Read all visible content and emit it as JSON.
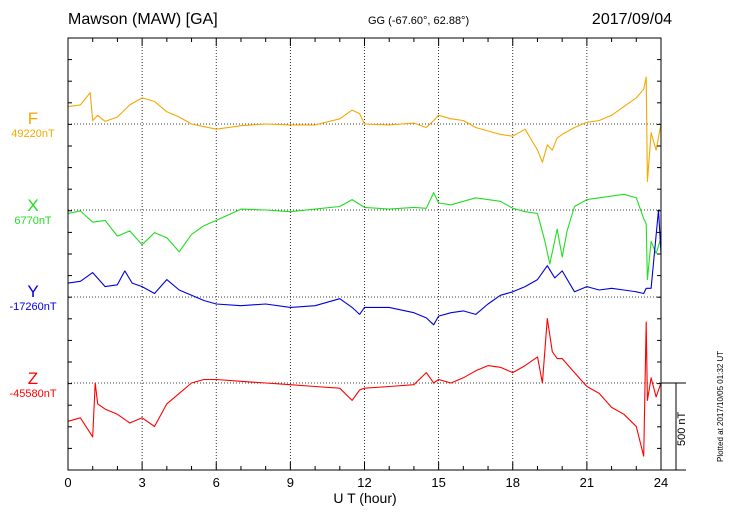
{
  "header": {
    "station": "Mawson (MAW)  [GA]",
    "coords": "GG (-67.60°,  62.88°)",
    "date": "2017/09/04"
  },
  "footnote": "Plotted at 2017/10/05 01:32 UT",
  "scale_label": "500 nT",
  "chart_data": {
    "type": "line",
    "xlabel": "U T (hour)",
    "ylabel": "",
    "xlim": [
      0,
      24
    ],
    "xticks": [
      0,
      3,
      6,
      9,
      12,
      15,
      18,
      21,
      24
    ],
    "scale_bar_nT": 500,
    "grid": true,
    "series": [
      {
        "name": "F",
        "baseline_label": "49220nT",
        "color": "#f5a800",
        "baseline_nT": 49220,
        "x": [
          0,
          0.5,
          0.9,
          1.0,
          1.2,
          1.5,
          2.0,
          2.5,
          3.0,
          3.5,
          4.0,
          4.5,
          5.0,
          5.5,
          6.0,
          7.0,
          8.0,
          9.0,
          10.0,
          11.0,
          11.5,
          11.8,
          12.0,
          13.0,
          14.0,
          14.5,
          14.8,
          15.0,
          15.5,
          16.0,
          16.5,
          17.0,
          17.5,
          18.0,
          18.5,
          19.0,
          19.2,
          19.4,
          19.6,
          19.8,
          20.0,
          20.5,
          21.0,
          21.5,
          22.0,
          22.5,
          23.0,
          23.3,
          23.4,
          23.45,
          23.6,
          23.8,
          24.0
        ],
        "values": [
          100,
          110,
          180,
          20,
          50,
          15,
          40,
          110,
          150,
          130,
          70,
          40,
          0,
          -15,
          -30,
          -10,
          0,
          -5,
          -5,
          30,
          80,
          60,
          0,
          -5,
          5,
          -20,
          20,
          50,
          30,
          20,
          -20,
          -40,
          -60,
          -70,
          -30,
          -150,
          -220,
          -120,
          -150,
          -80,
          -60,
          -20,
          10,
          20,
          50,
          100,
          150,
          200,
          270,
          -330,
          -50,
          -150,
          0
        ]
      },
      {
        "name": "X",
        "baseline_label": "6770nT",
        "color": "#22dd22",
        "baseline_nT": 6770,
        "x": [
          0,
          0.5,
          1.0,
          1.5,
          2.0,
          2.5,
          3.0,
          3.5,
          4.0,
          4.5,
          5.0,
          5.5,
          6.0,
          7.0,
          8.0,
          9.0,
          10.0,
          11.0,
          11.5,
          12.0,
          13.0,
          14.0,
          14.5,
          14.8,
          15.0,
          15.5,
          16.0,
          16.5,
          17.0,
          17.5,
          18.0,
          18.5,
          19.0,
          19.3,
          19.5,
          19.8,
          20.0,
          20.2,
          20.5,
          21.0,
          21.5,
          22.0,
          22.5,
          23.0,
          23.3,
          23.4,
          23.45,
          23.6,
          23.8,
          24.0
        ],
        "values": [
          -20,
          -5,
          -70,
          -60,
          -150,
          -120,
          -200,
          -130,
          -160,
          -240,
          -140,
          -90,
          -60,
          5,
          0,
          -10,
          5,
          20,
          60,
          15,
          5,
          15,
          10,
          100,
          40,
          30,
          50,
          70,
          60,
          50,
          10,
          -10,
          -20,
          -180,
          -310,
          -110,
          -270,
          -120,
          20,
          60,
          70,
          80,
          90,
          70,
          -50,
          -80,
          -400,
          -180,
          -250,
          -160
        ]
      },
      {
        "name": "Y",
        "baseline_label": "-17260nT",
        "color": "#0000dd",
        "baseline_nT": -17260,
        "x": [
          0,
          0.5,
          1.0,
          1.5,
          2.0,
          2.3,
          2.6,
          3.0,
          3.5,
          4.0,
          4.5,
          5.0,
          5.5,
          6.0,
          7.0,
          8.0,
          9.0,
          10.0,
          11.0,
          11.5,
          11.8,
          12.0,
          13.0,
          14.0,
          14.5,
          14.8,
          15.0,
          15.5,
          16.0,
          16.5,
          17.0,
          17.5,
          18.0,
          18.5,
          19.0,
          19.4,
          19.7,
          20.0,
          20.5,
          21.0,
          21.5,
          22.0,
          22.5,
          23.0,
          23.3,
          23.4,
          23.6,
          23.9,
          24.0
        ],
        "values": [
          80,
          90,
          140,
          60,
          70,
          150,
          80,
          60,
          20,
          100,
          40,
          10,
          -20,
          -40,
          -50,
          -40,
          -60,
          -50,
          -10,
          -60,
          -100,
          -60,
          -60,
          -90,
          -120,
          -160,
          -110,
          -90,
          -80,
          -100,
          -40,
          10,
          30,
          60,
          100,
          180,
          110,
          150,
          30,
          60,
          40,
          50,
          40,
          30,
          20,
          50,
          50,
          500,
          250
        ]
      },
      {
        "name": "Z",
        "baseline_label": "-45580nT",
        "color": "#ff0000",
        "baseline_nT": -45580,
        "x": [
          0,
          0.5,
          1.0,
          1.1,
          1.2,
          1.5,
          2.0,
          2.5,
          3.0,
          3.5,
          4.0,
          4.5,
          5.0,
          5.5,
          6.0,
          7.0,
          8.0,
          9.0,
          10.0,
          11.0,
          11.5,
          11.8,
          12.0,
          13.0,
          14.0,
          14.5,
          14.8,
          15.0,
          15.5,
          16.0,
          16.5,
          17.0,
          17.5,
          18.0,
          18.5,
          19.0,
          19.2,
          19.4,
          19.6,
          19.8,
          20.0,
          20.5,
          21.0,
          21.5,
          22.0,
          22.5,
          23.0,
          23.3,
          23.4,
          23.45,
          23.6,
          23.8,
          24.0
        ],
        "values": [
          -220,
          -200,
          -310,
          0,
          -120,
          -150,
          -180,
          -230,
          -200,
          -250,
          -120,
          -60,
          0,
          20,
          20,
          10,
          0,
          -10,
          -20,
          -30,
          -100,
          -40,
          -30,
          -20,
          -10,
          60,
          0,
          20,
          0,
          30,
          70,
          100,
          90,
          60,
          100,
          150,
          0,
          370,
          180,
          140,
          140,
          60,
          -20,
          -60,
          -140,
          -180,
          -250,
          -420,
          350,
          -100,
          30,
          -80,
          0
        ]
      }
    ]
  }
}
